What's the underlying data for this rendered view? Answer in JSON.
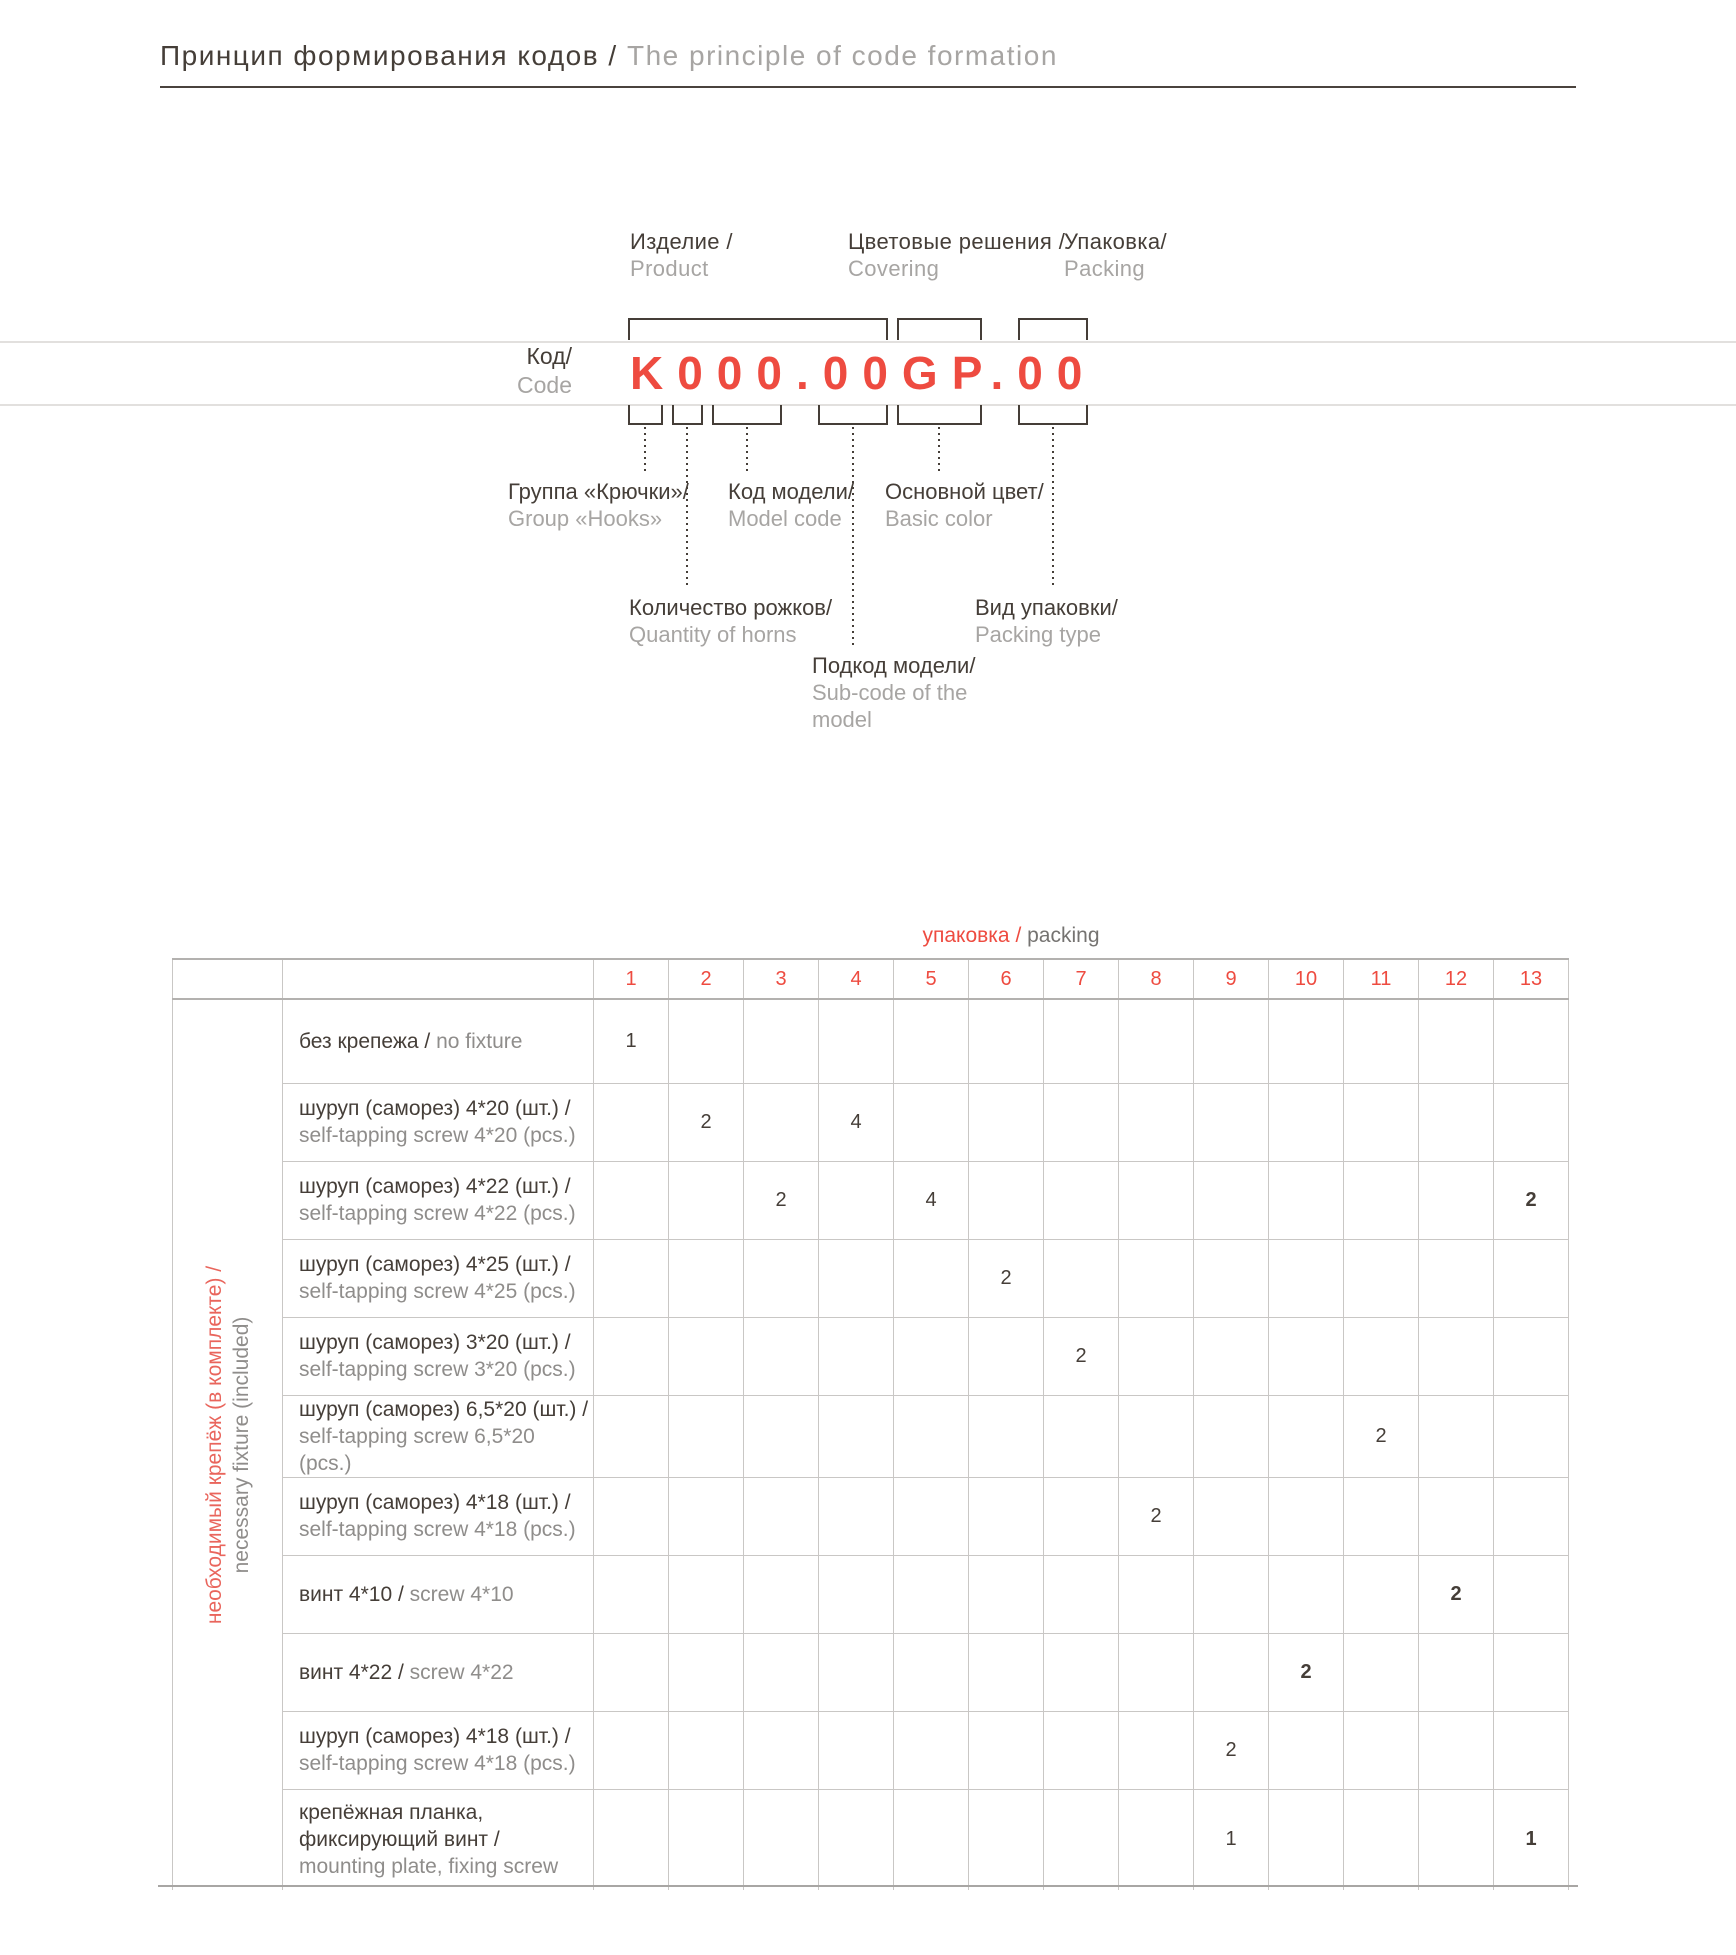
{
  "colors": {
    "accent_red": "#ee4b40",
    "dark_text": "#453e38",
    "gray_text": "#a7a5a3",
    "grid_line": "#c9c7c5"
  },
  "header": {
    "title_ru": "Принцип формирования кодов /",
    "title_en": "The principle of code formation"
  },
  "diagram": {
    "code": "K000.00GP.00",
    "code_label": {
      "ru": "Код/",
      "en": "Code"
    },
    "top_labels": [
      {
        "ru": "Изделие /",
        "en": "Product"
      },
      {
        "ru": "Цветовые решения /",
        "en": "Covering"
      },
      {
        "ru": "Упаковка/",
        "en": "Packing"
      }
    ],
    "bottom_labels": [
      {
        "ru": "Группа «Крючки»/",
        "en": "Group «Hooks»"
      },
      {
        "ru": "Код модели/",
        "en": "Model code"
      },
      {
        "ru": "Основной цвет/",
        "en": "Basic color"
      },
      {
        "ru": "Количество рожков/",
        "en": "Quantity of horns"
      },
      {
        "ru": "Вид упаковки/",
        "en": "Packing type"
      },
      {
        "ru": "Подкод модели/",
        "en": "Sub-code of the model"
      }
    ]
  },
  "table": {
    "title": {
      "ru": "упаковка /",
      "en": "packing"
    },
    "columns": [
      "1",
      "2",
      "3",
      "4",
      "5",
      "6",
      "7",
      "8",
      "9",
      "10",
      "11",
      "12",
      "13"
    ],
    "side_label": {
      "ru": "необходимый крепёж (в комплекте) /",
      "en": "necessary fixture (included)"
    },
    "rows": [
      {
        "ru": "без крепежа /",
        "en": "no fixture",
        "single_line": true,
        "cells": [
          {
            "col": 1,
            "value": "1",
            "bold": false
          }
        ]
      },
      {
        "ru": "шуруп (саморез) 4*20 (шт.) /",
        "en": "self-tapping screw 4*20 (pcs.)",
        "cells": [
          {
            "col": 2,
            "value": "2",
            "bold": false
          },
          {
            "col": 4,
            "value": "4",
            "bold": false
          }
        ]
      },
      {
        "ru": "шуруп (саморез) 4*22 (шт.) /",
        "en": "self-tapping screw 4*22 (pcs.)",
        "cells": [
          {
            "col": 3,
            "value": "2",
            "bold": false
          },
          {
            "col": 5,
            "value": "4",
            "bold": false
          },
          {
            "col": 13,
            "value": "2",
            "bold": true
          }
        ]
      },
      {
        "ru": "шуруп (саморез) 4*25 (шт.) /",
        "en": "self-tapping screw 4*25 (pcs.)",
        "cells": [
          {
            "col": 6,
            "value": "2",
            "bold": false
          }
        ]
      },
      {
        "ru": "шуруп (саморез) 3*20 (шт.) /",
        "en": "self-tapping screw 3*20 (pcs.)",
        "cells": [
          {
            "col": 7,
            "value": "2",
            "bold": false
          }
        ]
      },
      {
        "ru": "шуруп (саморез) 6,5*20 (шт.) /",
        "en": "self-tapping screw 6,5*20 (pcs.)",
        "cells": [
          {
            "col": 11,
            "value": "2",
            "bold": false
          }
        ]
      },
      {
        "ru": "шуруп (саморез) 4*18 (шт.) /",
        "en": "self-tapping screw 4*18 (pcs.)",
        "cells": [
          {
            "col": 8,
            "value": "2",
            "bold": false
          }
        ]
      },
      {
        "ru": "винт 4*10 /",
        "en": "screw 4*10",
        "single_line": true,
        "cells": [
          {
            "col": 12,
            "value": "2",
            "bold": true
          }
        ]
      },
      {
        "ru": "винт 4*22 /",
        "en": "screw 4*22",
        "single_line": true,
        "cells": [
          {
            "col": 10,
            "value": "2",
            "bold": true
          }
        ]
      },
      {
        "ru": "шуруп (саморез) 4*18 (шт.) /",
        "en": "self-tapping screw 4*18 (pcs.)",
        "cells": [
          {
            "col": 9,
            "value": "2",
            "bold": false
          }
        ]
      },
      {
        "ru": "крепёжная планка,\nфиксирующий винт /",
        "en": "mounting plate, fixing screw",
        "tall": true,
        "cells": [
          {
            "col": 9,
            "value": "1",
            "bold": false
          },
          {
            "col": 13,
            "value": "1",
            "bold": true
          }
        ]
      }
    ]
  }
}
